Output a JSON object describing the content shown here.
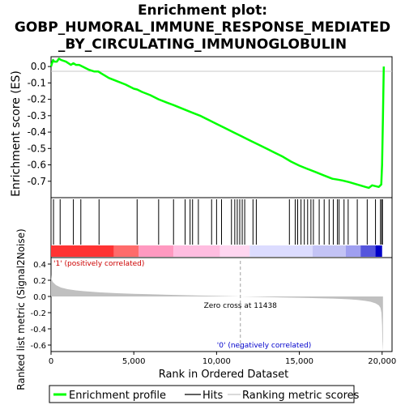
{
  "chart_data": {
    "type": "line",
    "title_lines": [
      "Enrichment plot:",
      "GOBP_HUMORAL_IMMUNE_RESPONSE_MEDIATED",
      "_BY_CIRCULATING_IMMUNOGLOBULIN"
    ],
    "xlabel": "Rank in Ordered Dataset",
    "xlim": [
      0,
      20600
    ],
    "x_ticks": [
      0,
      5000,
      10000,
      15000,
      20000
    ],
    "x_tick_labels": [
      "0",
      "5,000",
      "10,000",
      "15,000",
      "20,000"
    ],
    "enrichment_panel": {
      "ylabel": "Enrichment score (ES)",
      "ylim": [
        -0.8,
        0.06
      ],
      "y_ticks": [
        0.0,
        -0.1,
        -0.2,
        -0.3,
        -0.4,
        -0.5,
        -0.6,
        -0.7
      ],
      "y_tick_labels": [
        "0.0",
        "-0.1",
        "-0.2",
        "-0.3",
        "-0.4",
        "-0.5",
        "-0.6",
        "-0.7"
      ],
      "series_name": "Enrichment profile",
      "series_color": "#00ff00",
      "x": [
        0,
        120,
        200,
        350,
        480,
        600,
        900,
        1200,
        1350,
        1500,
        1700,
        1900,
        2300,
        2600,
        2850,
        3000,
        3500,
        4000,
        4500,
        5000,
        5200,
        5500,
        6000,
        6500,
        7000,
        7400,
        8000,
        8500,
        9000,
        9500,
        10000,
        10500,
        11000,
        11500,
        12000,
        12500,
        13000,
        13500,
        14000,
        14500,
        15000,
        15500,
        16000,
        16500,
        17000,
        17300,
        17600,
        18000,
        18500,
        19000,
        19200,
        19400,
        19600,
        19800,
        19950,
        20000,
        20050,
        20100
      ],
      "y": [
        0.0,
        0.04,
        0.03,
        0.03,
        0.048,
        0.04,
        0.03,
        0.01,
        0.02,
        0.01,
        0.01,
        0.0,
        -0.02,
        -0.03,
        -0.03,
        -0.04,
        -0.07,
        -0.09,
        -0.11,
        -0.135,
        -0.14,
        -0.155,
        -0.175,
        -0.2,
        -0.22,
        -0.235,
        -0.26,
        -0.28,
        -0.3,
        -0.325,
        -0.35,
        -0.375,
        -0.4,
        -0.425,
        -0.45,
        -0.475,
        -0.5,
        -0.525,
        -0.55,
        -0.58,
        -0.605,
        -0.625,
        -0.645,
        -0.665,
        -0.685,
        -0.69,
        -0.695,
        -0.705,
        -0.72,
        -0.735,
        -0.74,
        -0.725,
        -0.73,
        -0.735,
        -0.72,
        -0.6,
        -0.3,
        0.0
      ]
    },
    "hits_panel": {
      "series_name": "Hits",
      "hit_ranks": [
        150,
        550,
        1350,
        1800,
        2900,
        5200,
        6500,
        7400,
        8100,
        8400,
        8550,
        8900,
        9700,
        10000,
        10300,
        10900,
        11100,
        11250,
        11400,
        11550,
        11700,
        12200,
        12400,
        14400,
        14750,
        14900,
        15100,
        15300,
        15500,
        15700,
        15850,
        16200,
        16500,
        16800,
        17050,
        17300,
        17400,
        17700,
        17950,
        18500,
        19100,
        19600,
        19900,
        19980,
        20020
      ]
    },
    "color_bar": {
      "colors": [
        "#ff3333",
        "#ff6b6b",
        "#ff99c0",
        "#ffbde0",
        "#ffd6f0",
        "#dcdcff",
        "#c3c3f5",
        "#9f9ff0",
        "#5555dd",
        "#0000c8"
      ],
      "breaks": [
        0,
        3800,
        5300,
        7400,
        10200,
        12000,
        15800,
        17800,
        18700,
        19600,
        20000
      ]
    },
    "metric_panel": {
      "ylabel": "Ranked list metric (Signal2Noise)",
      "ylim": [
        -0.68,
        0.48
      ],
      "y_ticks": [
        0.4,
        0.2,
        0.0,
        -0.2,
        -0.4,
        -0.6
      ],
      "y_tick_labels": [
        "0.4",
        "0.2",
        "0.0",
        "-0.2",
        "-0.4",
        "-0.6"
      ],
      "series_name": "Ranking metric scores",
      "x": [
        0,
        20,
        100,
        300,
        600,
        1000,
        1500,
        2000,
        3000,
        4000,
        5000,
        6000,
        7000,
        8000,
        9000,
        10000,
        11000,
        11438,
        12000,
        13000,
        14000,
        15000,
        16000,
        17000,
        17500,
        18000,
        18500,
        19000,
        19300,
        19600,
        19800,
        19900,
        19960,
        20000,
        20020,
        20050
      ],
      "y": [
        0.27,
        0.22,
        0.18,
        0.14,
        0.11,
        0.09,
        0.075,
        0.065,
        0.05,
        0.04,
        0.033,
        0.027,
        0.021,
        0.016,
        0.011,
        0.007,
        0.002,
        0.0,
        -0.003,
        -0.008,
        -0.012,
        -0.016,
        -0.021,
        -0.026,
        -0.03,
        -0.035,
        -0.042,
        -0.055,
        -0.065,
        -0.085,
        -0.11,
        -0.14,
        -0.2,
        -0.35,
        -0.55,
        -0.68
      ],
      "fill_color": "#c0c0c0",
      "zero_cross_rank": 11438,
      "zero_cross_label": "Zero cross at 11438",
      "pos_label": "'1' (positively correlated)",
      "neg_label": "'0' (negatively correlated)"
    },
    "legend": {
      "placement": "bottom",
      "entries": [
        "Enrichment profile",
        "Hits",
        "Ranking metric scores"
      ]
    }
  }
}
